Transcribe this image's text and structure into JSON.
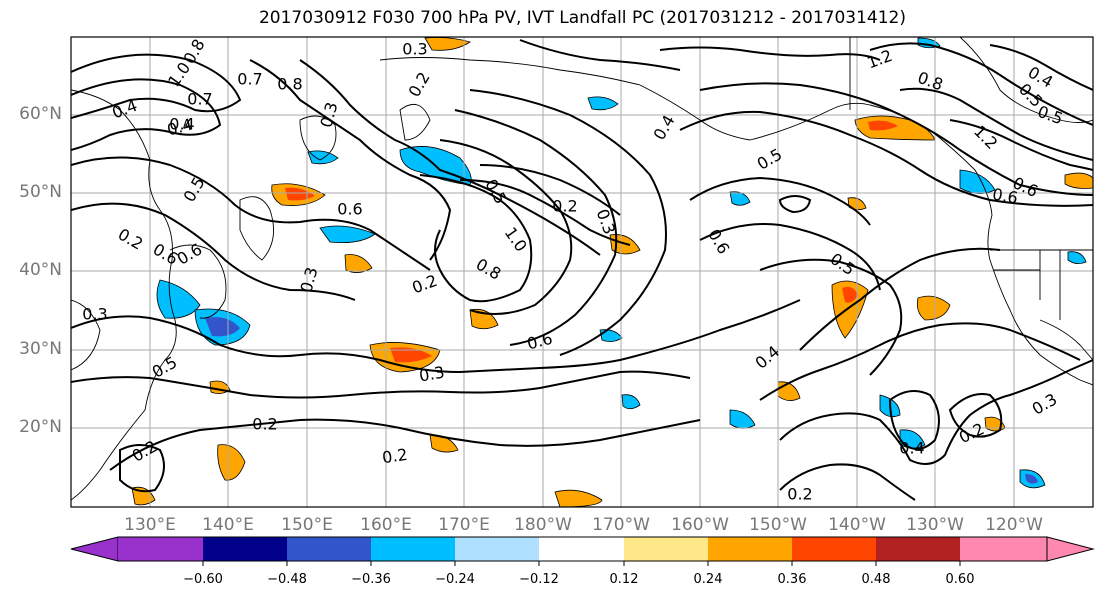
{
  "title": "2017030912 F030 700 hPa PV, IVT Landfall PC (2017031212 - 2017031412)",
  "latitude_labels": [
    "60°N",
    "50°N",
    "40°N",
    "30°N",
    "20°N"
  ],
  "longitude_labels": [
    "130°E",
    "140°E",
    "150°E",
    "160°E",
    "170°E",
    "180°W",
    "170°W",
    "160°W",
    "150°W",
    "140°W",
    "130°W",
    "120°W"
  ],
  "colorbar": {
    "tick_labels": [
      "−0.60",
      "−0.48",
      "−0.36",
      "−0.24",
      "−0.12",
      "0.12",
      "0.24",
      "0.36",
      "0.48",
      "0.60"
    ],
    "colors": [
      "#9932cc",
      "#00008b",
      "#3355cc",
      "#00bfff",
      "#b0e0ff",
      "#ffffff",
      "#ffe88a",
      "#ffa500",
      "#ff4500",
      "#b22222",
      "#ff88b0"
    ]
  },
  "contour_labels": [
    "0.8",
    "1.0",
    "0.7",
    "0.8",
    "0.7",
    "0.4",
    "0.5",
    "0.6",
    "0.6",
    "0.3",
    "0.2",
    "0.3",
    "0.5",
    "0.3",
    "0.2",
    "0.2",
    "0.2",
    "0.3",
    "0.4",
    "0.8",
    "1.0",
    "0.6",
    "0.2",
    "0.3",
    "0.5",
    "0.6",
    "0.4",
    "0.5",
    "0.2",
    "0.3",
    "0.4",
    "1.2",
    "0.8",
    "0.6",
    "1.2",
    "0.4",
    "0.5",
    "0.5",
    "0.6",
    "0.5",
    "0.2",
    "0.4",
    "0.3",
    "0.2",
    "0.2",
    "0.6",
    "0.4"
  ]
}
